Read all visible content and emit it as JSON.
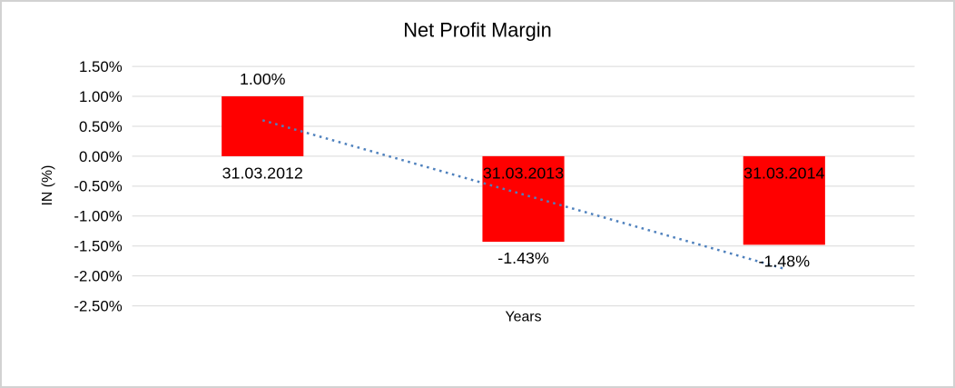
{
  "chart_data": {
    "type": "bar",
    "title": "Net Profit Margin",
    "xlabel": "Years",
    "ylabel": "IN (%)",
    "categories": [
      "31.03.2012",
      "31.03.2013",
      "31.03.2014"
    ],
    "values": [
      1.0,
      -1.43,
      -1.48
    ],
    "value_labels": [
      "1.00%",
      "-1.43%",
      "-1.48%"
    ],
    "y_ticks": [
      {
        "label": "1.50%",
        "value": 1.5
      },
      {
        "label": "1.00%",
        "value": 1.0
      },
      {
        "label": "0.50%",
        "value": 0.5
      },
      {
        "label": "0.00%",
        "value": 0.0
      },
      {
        "label": "-0.50%",
        "value": -0.5
      },
      {
        "label": "-1.00%",
        "value": -1.0
      },
      {
        "label": "-1.50%",
        "value": -1.5
      },
      {
        "label": "-2.00%",
        "value": -2.0
      },
      {
        "label": "-2.50%",
        "value": -2.5
      }
    ],
    "ylim": [
      -2.5,
      1.5
    ],
    "grid": true,
    "legend": "none",
    "bar_color": "#FF0000",
    "trendline": {
      "style": "dotted",
      "color": "#4F81BD",
      "from_value": 0.6,
      "to_value": -1.88
    }
  },
  "colors": {
    "background": "#FFFFFF",
    "border": "#D2D2D2",
    "gridline": "#D9D9D9",
    "text": "#000000",
    "bar": "#FF0000",
    "trendline": "#4F81BD"
  }
}
